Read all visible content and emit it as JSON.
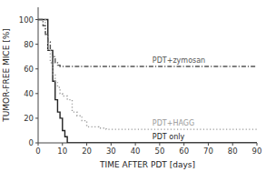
{
  "chart_data": {
    "type": "line",
    "xlabel": "TIME AFTER PDT [days]",
    "ylabel": "TUMOR-FREE MICE [%]",
    "xlim": [
      0,
      90
    ],
    "ylim": [
      0,
      110
    ],
    "xticks": [
      0,
      10,
      20,
      30,
      40,
      50,
      60,
      70,
      80,
      90
    ],
    "yticks": [
      0,
      20,
      40,
      60,
      80,
      100
    ],
    "grid": false,
    "series": [
      {
        "color": "#222222",
        "line_style": "solid",
        "x": [
          0,
          4,
          4,
          6,
          6,
          7,
          7,
          8,
          8,
          9,
          9,
          10,
          10,
          11,
          11,
          12,
          12,
          13,
          13,
          14,
          14,
          90
        ],
        "values": [
          100,
          100,
          75,
          75,
          50,
          50,
          35,
          35,
          25,
          25,
          20,
          20,
          10,
          10,
          5,
          5,
          0,
          0,
          0,
          0,
          0,
          0
        ]
      },
      {
        "color": "#999999",
        "line_style": "dotted",
        "x": [
          0,
          3,
          3,
          4,
          4,
          5,
          5,
          6,
          6,
          7,
          7,
          8,
          8,
          9,
          9,
          10,
          10,
          12,
          12,
          14,
          14,
          16,
          16,
          18,
          18,
          20,
          20,
          25,
          25,
          28,
          28,
          30,
          30,
          32,
          32,
          90
        ],
        "values": [
          100,
          100,
          88,
          88,
          75,
          75,
          65,
          65,
          55,
          55,
          50,
          50,
          45,
          45,
          40,
          40,
          38,
          38,
          35,
          35,
          25,
          25,
          22,
          22,
          18,
          18,
          13,
          13,
          12,
          12,
          11,
          11,
          11,
          11,
          11,
          11
        ]
      },
      {
        "color": "#555555",
        "line_style": "dashdot",
        "x": [
          0,
          2,
          2,
          3,
          3,
          4,
          4,
          5,
          5,
          6,
          6,
          7,
          7,
          8,
          8,
          9,
          9,
          10,
          10,
          11,
          11,
          90
        ],
        "values": [
          100,
          100,
          95,
          95,
          88,
          88,
          82,
          82,
          75,
          75,
          70,
          70,
          65,
          65,
          63,
          63,
          62,
          62,
          62,
          62,
          62,
          62
        ]
      }
    ],
    "annotations": [
      {
        "text": "PDT+zymosan",
        "x": 47,
        "y": 65,
        "color": "#555555"
      },
      {
        "text": "PDT+HAGG",
        "x": 47,
        "y": 14,
        "color": "#999999"
      },
      {
        "text": "PDT only",
        "x": 47,
        "y": 3,
        "color": "#222222"
      }
    ]
  }
}
